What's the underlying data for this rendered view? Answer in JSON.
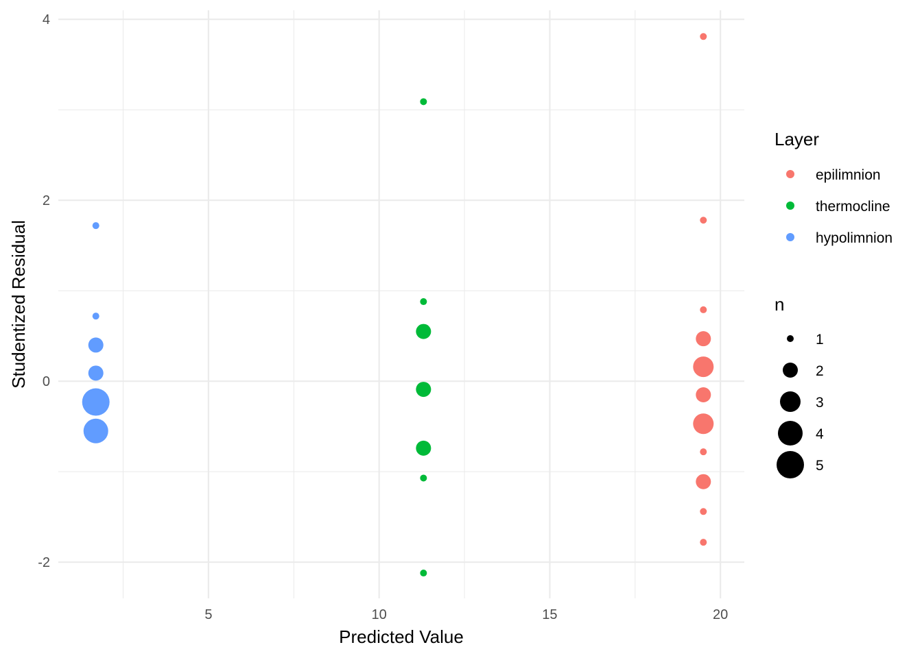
{
  "chart_data": {
    "type": "scatter",
    "xlabel": "Predicted Value",
    "ylabel": "Studentized Residual",
    "xlim": [
      0.6,
      20.7
    ],
    "ylim": [
      -2.4,
      4.1
    ],
    "x_ticks": [
      5,
      10,
      15,
      20
    ],
    "y_ticks": [
      -2,
      0,
      2,
      4
    ],
    "x_minor_ticks": [
      2.5,
      7.5,
      12.5,
      17.5
    ],
    "y_minor_ticks": [
      -1,
      1,
      3
    ],
    "grid": true,
    "legend_placement": "right",
    "colors": {
      "epilimnion": "#F8766D",
      "thermocline": "#00BA38",
      "hypolimnion": "#619CFF"
    },
    "color_legend": {
      "title": "Layer",
      "entries": [
        "epilimnion",
        "thermocline",
        "hypolimnion"
      ]
    },
    "size_legend": {
      "title": "n",
      "entries": [
        1,
        2,
        3,
        4,
        5
      ]
    },
    "series": [
      {
        "name": "epilimnion",
        "x": [
          19.5,
          19.5,
          19.5,
          19.5,
          19.5,
          19.5,
          19.5,
          19.5,
          19.5,
          19.5,
          19.5
        ],
        "y": [
          3.81,
          1.78,
          0.79,
          0.47,
          0.16,
          -0.15,
          -0.47,
          -0.78,
          -1.11,
          -1.44,
          -1.78
        ],
        "n": [
          1,
          1,
          1,
          2,
          3,
          2,
          3,
          1,
          2,
          1,
          1
        ]
      },
      {
        "name": "thermocline",
        "x": [
          11.3,
          11.3,
          11.3,
          11.3,
          11.3,
          11.3,
          11.3
        ],
        "y": [
          3.09,
          0.88,
          0.55,
          -0.09,
          -0.74,
          -1.07,
          -2.12
        ],
        "n": [
          1,
          1,
          2,
          2,
          2,
          1,
          1
        ]
      },
      {
        "name": "hypolimnion",
        "x": [
          1.7,
          1.7,
          1.7,
          1.7,
          1.7,
          1.7
        ],
        "y": [
          1.72,
          0.72,
          0.4,
          0.09,
          -0.23,
          -0.55
        ],
        "n": [
          1,
          1,
          2,
          2,
          5,
          4
        ]
      }
    ]
  }
}
